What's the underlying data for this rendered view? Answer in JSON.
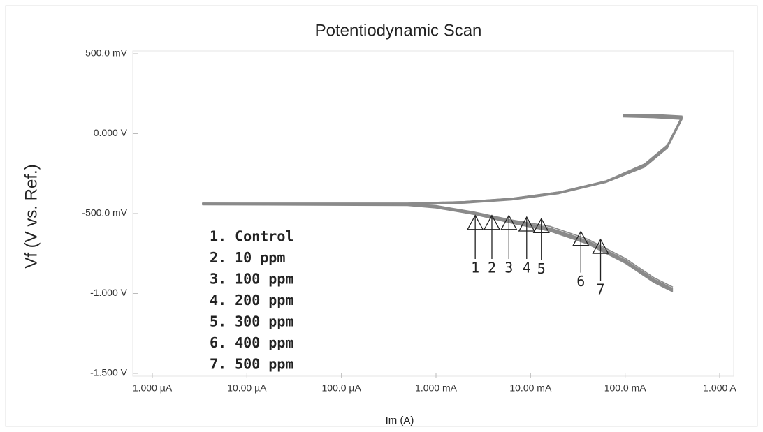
{
  "chart_data": {
    "type": "line",
    "title": "Potentiodynamic Scan",
    "x_label": "Im (A)",
    "y_label": "Vf (V vs. Ref.)",
    "x_scale": "log",
    "xlim": [
      1e-06,
      1
    ],
    "xticks": [
      {
        "value": 1e-06,
        "label": "1.000 µA"
      },
      {
        "value": 1e-05,
        "label": "10.00 µA"
      },
      {
        "value": 0.0001,
        "label": "100.0 µA"
      },
      {
        "value": 0.001,
        "label": "1.000 mA"
      },
      {
        "value": 0.01,
        "label": "10.00 mA"
      },
      {
        "value": 0.1,
        "label": "100.0 mA"
      },
      {
        "value": 1,
        "label": "1.000 A"
      }
    ],
    "ylim": [
      -1.5,
      0.5
    ],
    "yticks": [
      {
        "value": 0.5,
        "label": "500.0 mV"
      },
      {
        "value": 0,
        "label": "0.000 V"
      },
      {
        "value": -0.5,
        "label": "-500.0 mV"
      },
      {
        "value": -1,
        "label": "-1.000 V"
      },
      {
        "value": -1.5,
        "label": "-1.500 V"
      }
    ],
    "legend": "lower left",
    "x": [
      0.32,
      0.2,
      0.1,
      0.04,
      0.016,
      0.0063,
      0.0025,
      0.001,
      0.0005,
      3.4e-06,
      0.0005,
      0.002,
      0.0063,
      0.02,
      0.063,
      0.16,
      0.28,
      0.4,
      0.2,
      0.095
    ],
    "series": [
      {
        "name": "1. Control",
        "color": "#8a8a8a",
        "values": [
          -0.98,
          -0.92,
          -0.8,
          -0.68,
          -0.6,
          -0.55,
          -0.5,
          -0.46,
          -0.445,
          -0.44,
          -0.44,
          -0.43,
          -0.41,
          -0.37,
          -0.3,
          -0.2,
          -0.08,
          0.1,
          0.11,
          0.115
        ]
      },
      {
        "name": "2. 10 ppm",
        "color": "#8a8a8a",
        "values": [
          -0.97,
          -0.91,
          -0.79,
          -0.67,
          -0.59,
          -0.545,
          -0.495,
          -0.455,
          -0.44,
          -0.435,
          -0.435,
          -0.425,
          -0.405,
          -0.365,
          -0.295,
          -0.19,
          -0.07,
          0.11,
          0.12,
          0.12
        ]
      },
      {
        "name": "3. 100 ppm",
        "color": "#8a8a8a",
        "values": [
          -0.99,
          -0.93,
          -0.81,
          -0.69,
          -0.61,
          -0.56,
          -0.505,
          -0.465,
          -0.45,
          -0.445,
          -0.445,
          -0.435,
          -0.415,
          -0.375,
          -0.305,
          -0.21,
          -0.09,
          0.09,
          0.1,
          0.105
        ]
      },
      {
        "name": "4. 200 ppm",
        "color": "#8a8a8a",
        "values": [
          -0.975,
          -0.915,
          -0.795,
          -0.675,
          -0.595,
          -0.55,
          -0.5,
          -0.46,
          -0.445,
          -0.44,
          -0.44,
          -0.43,
          -0.41,
          -0.37,
          -0.3,
          -0.2,
          -0.085,
          0.095,
          0.105,
          0.11
        ]
      },
      {
        "name": "5. 300 ppm",
        "color": "#8a8a8a",
        "values": [
          -0.985,
          -0.925,
          -0.805,
          -0.685,
          -0.605,
          -0.555,
          -0.505,
          -0.46,
          -0.445,
          -0.44,
          -0.44,
          -0.43,
          -0.41,
          -0.37,
          -0.3,
          -0.205,
          -0.08,
          0.1,
          0.11,
          0.115
        ]
      },
      {
        "name": "6. 400 ppm",
        "color": "#8a8a8a",
        "values": [
          -0.96,
          -0.9,
          -0.78,
          -0.66,
          -0.58,
          -0.54,
          -0.49,
          -0.45,
          -0.44,
          -0.435,
          -0.435,
          -0.425,
          -0.405,
          -0.365,
          -0.295,
          -0.195,
          -0.075,
          0.105,
          0.115,
          0.12
        ]
      },
      {
        "name": "7. 500 ppm",
        "color": "#8a8a8a",
        "values": [
          -0.97,
          -0.91,
          -0.79,
          -0.67,
          -0.59,
          -0.545,
          -0.495,
          -0.455,
          -0.44,
          -0.435,
          -0.44,
          -0.43,
          -0.41,
          -0.37,
          -0.3,
          -0.2,
          -0.08,
          0.1,
          0.11,
          0.115
        ]
      }
    ],
    "annotations": [
      {
        "label": "1",
        "x": 0.0026,
        "y": -0.56
      },
      {
        "label": "2",
        "x": 0.0039,
        "y": -0.56
      },
      {
        "label": "3",
        "x": 0.0059,
        "y": -0.56
      },
      {
        "label": "4",
        "x": 0.0091,
        "y": -0.57
      },
      {
        "label": "5",
        "x": 0.013,
        "y": -0.58
      },
      {
        "label": "6",
        "x": 0.034,
        "y": -0.66
      },
      {
        "label": "7",
        "x": 0.055,
        "y": -0.71
      }
    ]
  }
}
